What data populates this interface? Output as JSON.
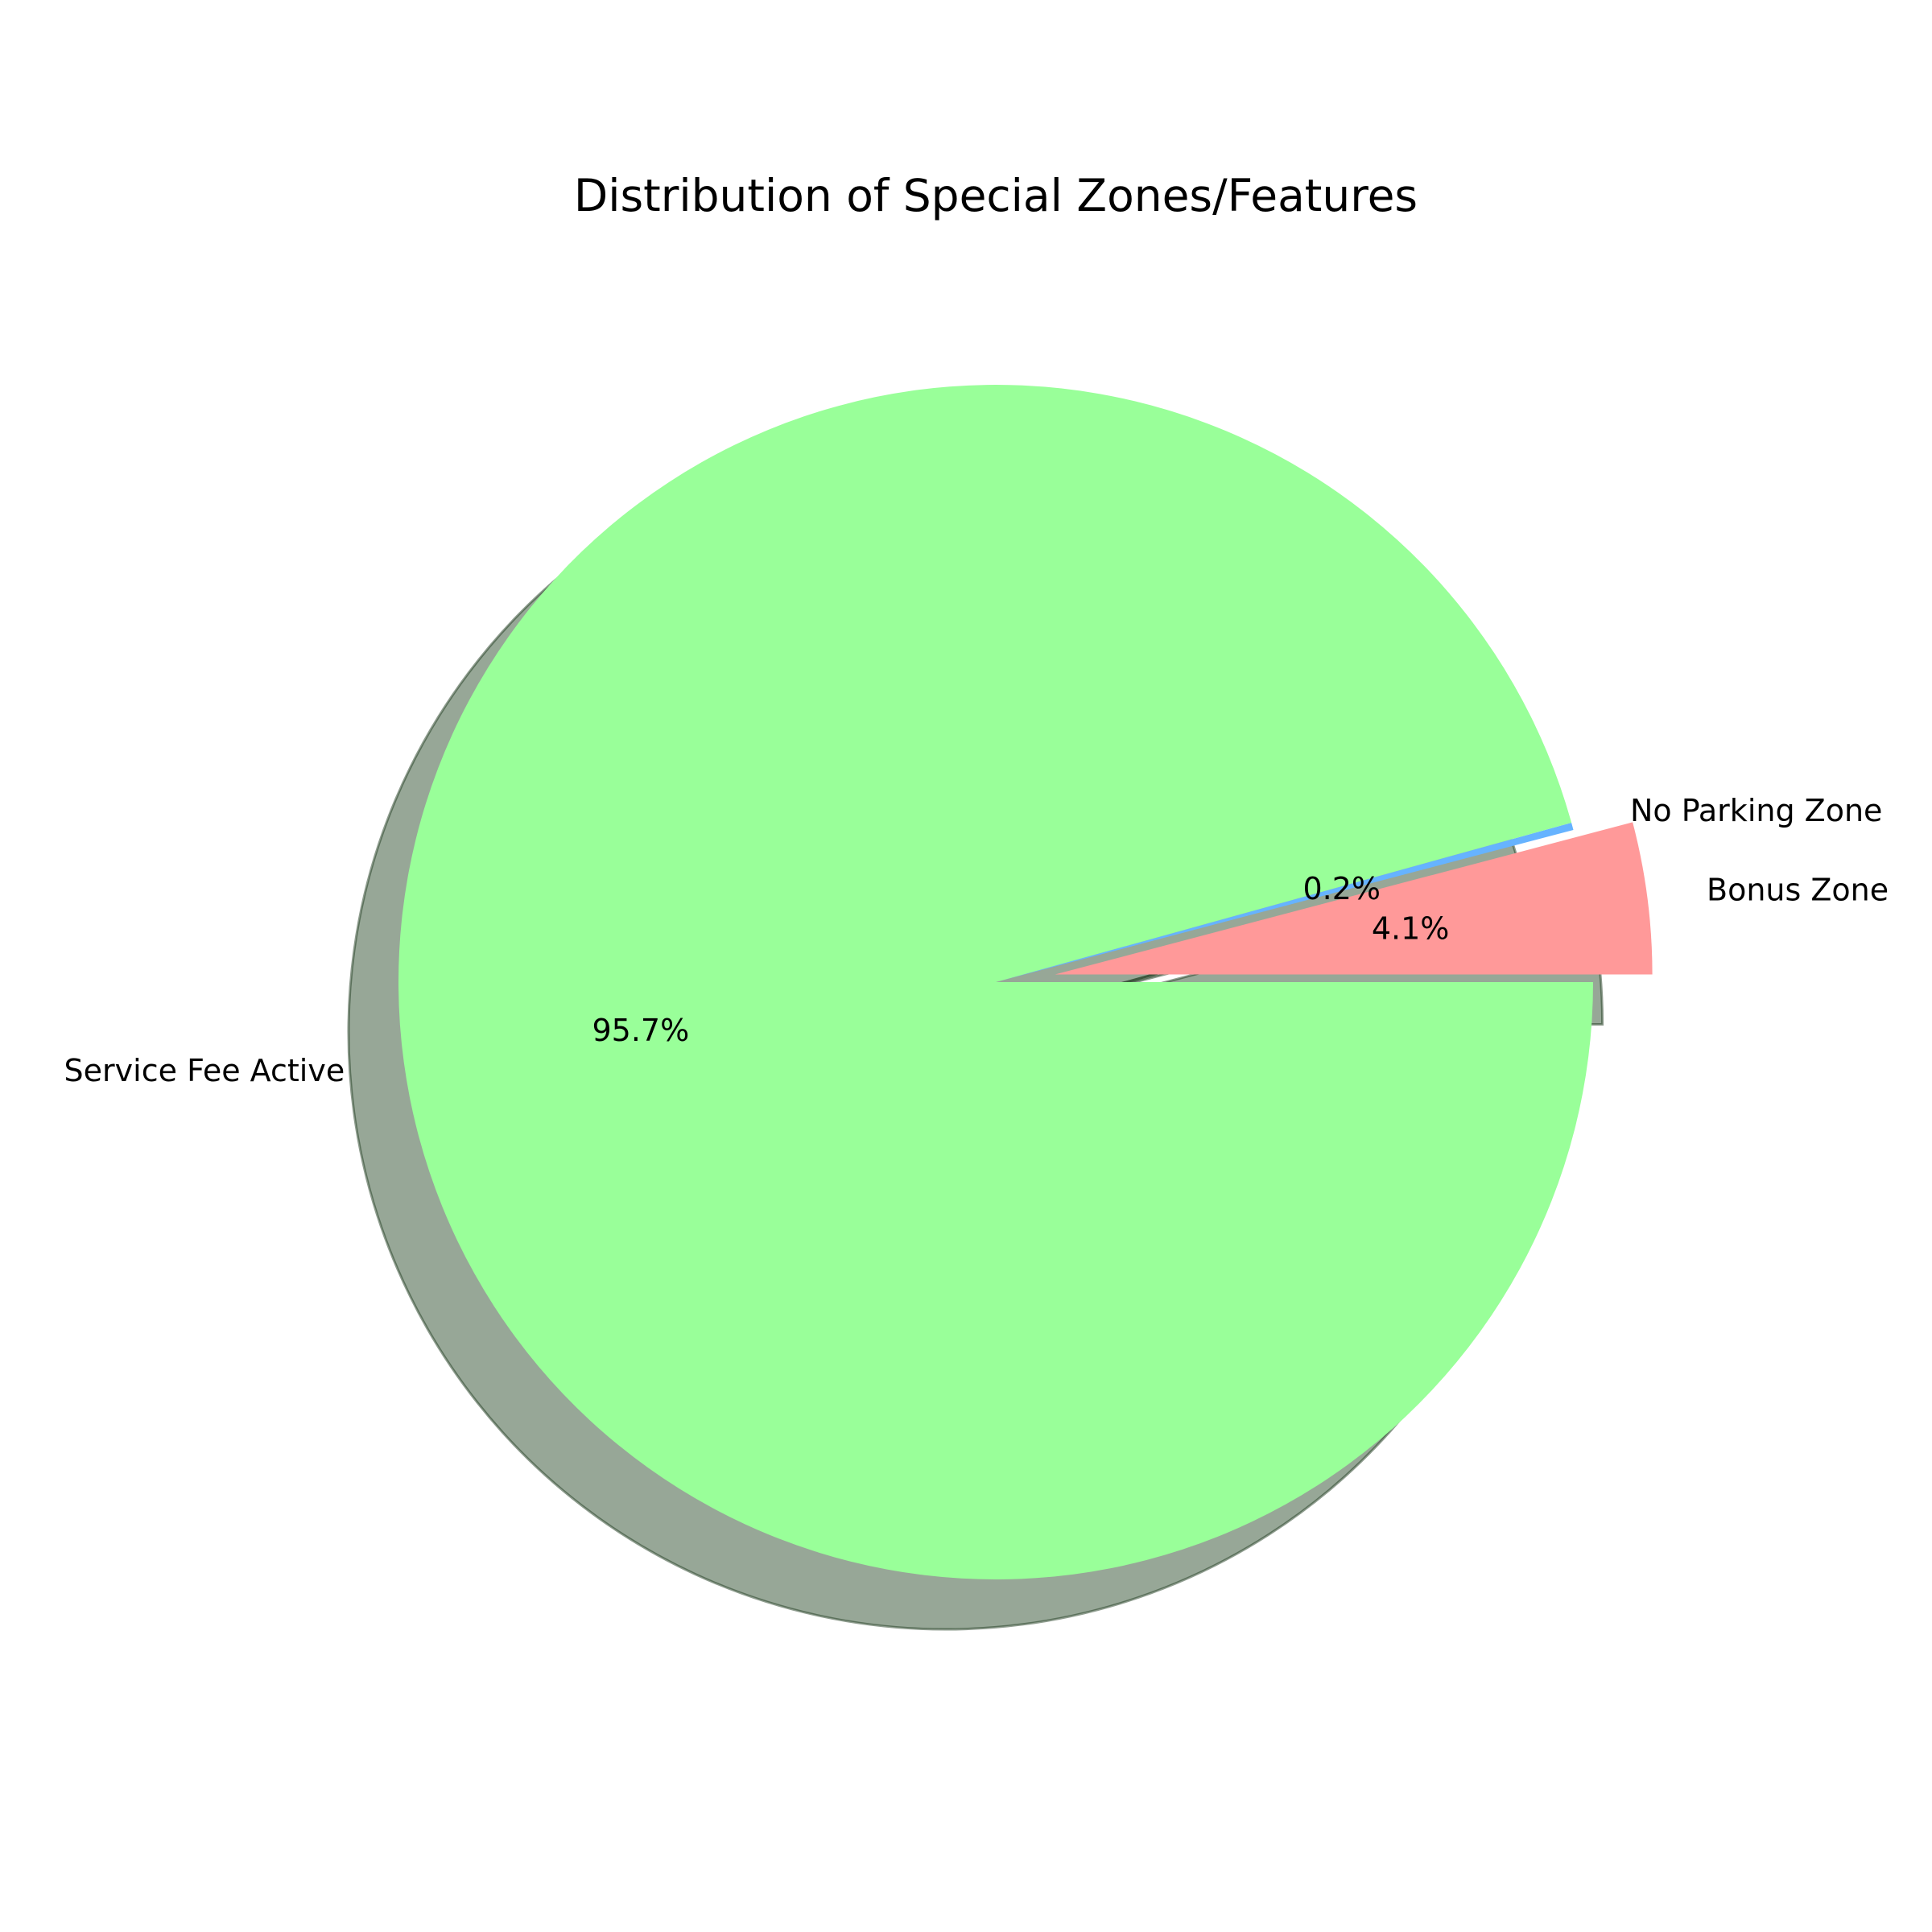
{
  "chart_data": {
    "type": "pie",
    "title": "Distribution of Special Zones/Features",
    "slices": [
      {
        "label": "Bonus Zone",
        "value": 4.1,
        "pct_label": "4.1%",
        "color": "#ff9999",
        "exploded": true
      },
      {
        "label": "No Parking Zone",
        "value": 0.2,
        "pct_label": "0.2%",
        "color": "#66b3ff",
        "exploded": false
      },
      {
        "label": "Service Fee Active",
        "value": 95.7,
        "pct_label": "95.7%",
        "color": "#99ff99",
        "exploded": false
      }
    ],
    "start_angle_deg": 0,
    "direction": "counterclockwise",
    "shadow": true
  }
}
